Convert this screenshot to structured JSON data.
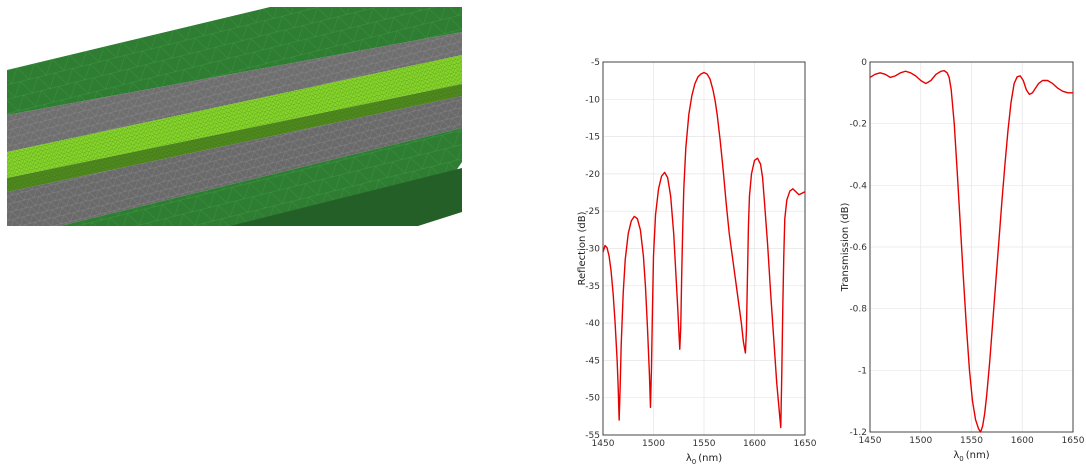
{
  "colors": {
    "curve": "#e60000",
    "mesh_dark_green": "#2e7d32",
    "mesh_grey": "#6f6f6f",
    "mesh_core_green": "#8ede2a",
    "mesh_edge_green": "#4f8a1e"
  },
  "mesh_image": {
    "description_icon": "waveguide-mesh-3d-icon"
  },
  "chart_data": [
    {
      "type": "line",
      "xlabel_symbol": "λ",
      "xlabel_subscript": "0",
      "xlabel_unit": "(nm)",
      "ylabel": "Reflection (dB)",
      "xlim": [
        1450,
        1650
      ],
      "ylim": [
        -55,
        -5
      ],
      "x_ticks": [
        1450,
        1500,
        1550,
        1600,
        1650
      ],
      "y_ticks": [
        -5,
        -10,
        -15,
        -20,
        -25,
        -30,
        -35,
        -40,
        -45,
        -50,
        -55
      ],
      "grid": true,
      "series": [
        {
          "x": [
            1450,
            1452,
            1454,
            1456,
            1458,
            1460,
            1462,
            1464,
            1465,
            1466,
            1467,
            1468,
            1470,
            1472,
            1475,
            1478,
            1481,
            1484,
            1487,
            1490,
            1492,
            1494,
            1496,
            1497,
            1498,
            1499,
            1500,
            1502,
            1505,
            1508,
            1511,
            1514,
            1517,
            1520,
            1522,
            1524,
            1526,
            1527,
            1528,
            1529,
            1530,
            1532,
            1535,
            1538,
            1541,
            1544,
            1547,
            1550,
            1553,
            1556,
            1559,
            1561,
            1563,
            1566,
            1569,
            1572,
            1575,
            1578,
            1581,
            1584,
            1587,
            1589,
            1591,
            1592,
            1593,
            1594,
            1595,
            1597,
            1600,
            1603,
            1606,
            1608,
            1610,
            1613,
            1616,
            1619,
            1622,
            1624,
            1626,
            1627,
            1628,
            1629,
            1630,
            1632,
            1635,
            1638,
            1641,
            1644,
            1647,
            1650
          ],
          "y": [
            -30.5,
            -29.6,
            -29.9,
            -31,
            -33,
            -36,
            -40,
            -45,
            -48.5,
            -53,
            -48.5,
            -43,
            -36,
            -31.5,
            -28,
            -26.3,
            -25.7,
            -26,
            -27.5,
            -31,
            -35,
            -40.5,
            -47,
            -51.3,
            -46,
            -38,
            -31,
            -25.5,
            -22,
            -20.3,
            -19.8,
            -20.5,
            -23,
            -28,
            -33,
            -38,
            -43.5,
            -40.5,
            -33,
            -27,
            -22,
            -16.5,
            -12,
            -9.5,
            -7.9,
            -7,
            -6.6,
            -6.4,
            -6.6,
            -7.3,
            -8.8,
            -10.2,
            -12,
            -15.5,
            -19.5,
            -24,
            -28,
            -31,
            -34,
            -37,
            -40,
            -42.5,
            -44,
            -41,
            -34,
            -27,
            -23,
            -20,
            -18.2,
            -17.9,
            -18.7,
            -20.5,
            -24,
            -29.5,
            -36,
            -42,
            -48,
            -51,
            -54,
            -47,
            -38,
            -31,
            -26,
            -23.5,
            -22.3,
            -22,
            -22.4,
            -22.8,
            -22.6,
            -22.4
          ]
        }
      ]
    },
    {
      "type": "line",
      "xlabel_symbol": "λ",
      "xlabel_subscript": "0",
      "xlabel_unit": "(nm)",
      "ylabel": "Transmission (dB)",
      "xlim": [
        1450,
        1650
      ],
      "ylim": [
        -1.2,
        0
      ],
      "x_ticks": [
        1450,
        1500,
        1550,
        1600,
        1650
      ],
      "y_ticks": [
        0,
        -0.2,
        -0.4,
        -0.6,
        -0.8,
        -1,
        -1.2
      ],
      "grid": true,
      "series": [
        {
          "x": [
            1450,
            1455,
            1460,
            1465,
            1470,
            1475,
            1480,
            1485,
            1490,
            1495,
            1500,
            1505,
            1510,
            1515,
            1520,
            1523,
            1526,
            1528,
            1530,
            1533,
            1536,
            1539,
            1542,
            1545,
            1548,
            1551,
            1554,
            1557,
            1559,
            1561,
            1563,
            1565,
            1568,
            1571,
            1574,
            1577,
            1580,
            1583,
            1586,
            1589,
            1592,
            1595,
            1598,
            1601,
            1604,
            1607,
            1610,
            1613,
            1616,
            1620,
            1625,
            1630,
            1635,
            1640,
            1645,
            1650
          ],
          "y": [
            -0.05,
            -0.04,
            -0.035,
            -0.04,
            -0.05,
            -0.045,
            -0.035,
            -0.03,
            -0.035,
            -0.045,
            -0.06,
            -0.07,
            -0.06,
            -0.04,
            -0.03,
            -0.028,
            -0.035,
            -0.05,
            -0.09,
            -0.2,
            -0.36,
            -0.53,
            -0.7,
            -0.86,
            -1.0,
            -1.1,
            -1.16,
            -1.19,
            -1.2,
            -1.18,
            -1.14,
            -1.08,
            -0.97,
            -0.84,
            -0.71,
            -0.58,
            -0.45,
            -0.33,
            -0.22,
            -0.13,
            -0.07,
            -0.048,
            -0.045,
            -0.06,
            -0.09,
            -0.105,
            -0.1,
            -0.085,
            -0.07,
            -0.06,
            -0.06,
            -0.07,
            -0.085,
            -0.095,
            -0.1,
            -0.1
          ]
        }
      ]
    }
  ]
}
